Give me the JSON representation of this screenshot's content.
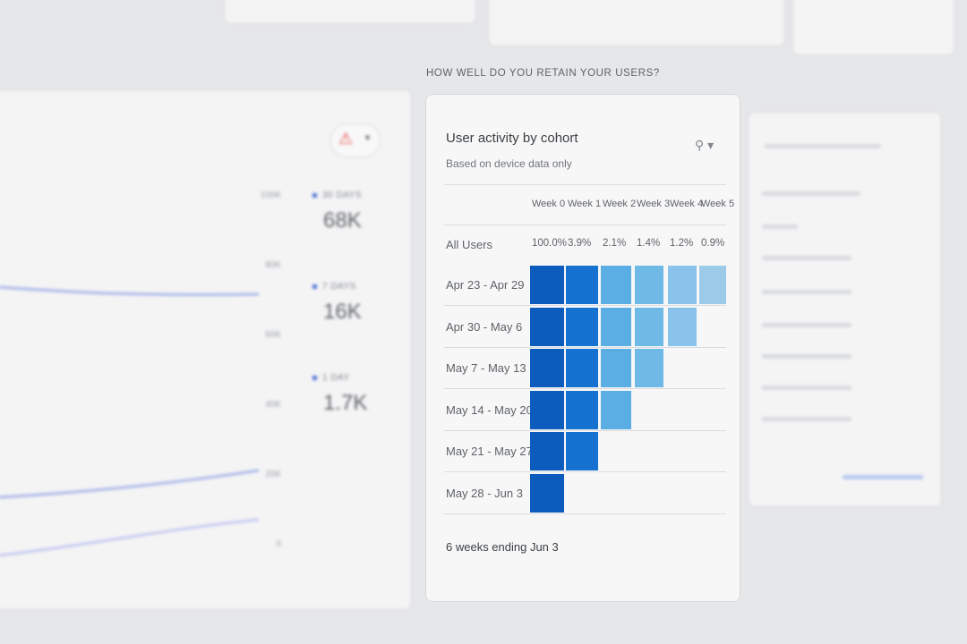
{
  "section_title": "HOW WELL DO YOU RETAIN YOUR USERS?",
  "active_users": {
    "y_ticks": [
      "100K",
      "80K",
      "60K",
      "40K",
      "20K",
      "0"
    ],
    "legend": [
      {
        "label": "30 DAYS",
        "value": "68K"
      },
      {
        "label": "7 DAYS",
        "value": "16K"
      },
      {
        "label": "1 DAY",
        "value": "1.7K"
      }
    ],
    "alert_icon": "warning-triangle-icon",
    "line_color": "#aab7e8"
  },
  "cohort": {
    "title": "User activity by cohort",
    "subtitle": "Based on device data only",
    "weeks": [
      "Week 0",
      "Week 1",
      "Week 2",
      "Week 3",
      "Week 4",
      "Week 5"
    ],
    "all_users": {
      "label": "All Users",
      "values": [
        "100.0%",
        "3.9%",
        "2.1%",
        "1.4%",
        "1.2%",
        "0.9%"
      ]
    },
    "rows": [
      {
        "label": "Apr 23 - Apr 29",
        "weeks_filled": 6
      },
      {
        "label": "Apr 30 - May 6",
        "weeks_filled": 5
      },
      {
        "label": "May 7 - May 13",
        "weeks_filled": 4
      },
      {
        "label": "May 14 - May 20",
        "weeks_filled": 3
      },
      {
        "label": "May 21 - May 27",
        "weeks_filled": 2
      },
      {
        "label": "May 28 - Jun 3",
        "weeks_filled": 1
      }
    ],
    "week_colors": [
      "#0b5cbd",
      "#1672d1",
      "#5aaee3",
      "#6fb9e7",
      "#89c2ea",
      "#9ccbea"
    ],
    "footer": "6 weeks ending Jun 3"
  }
}
